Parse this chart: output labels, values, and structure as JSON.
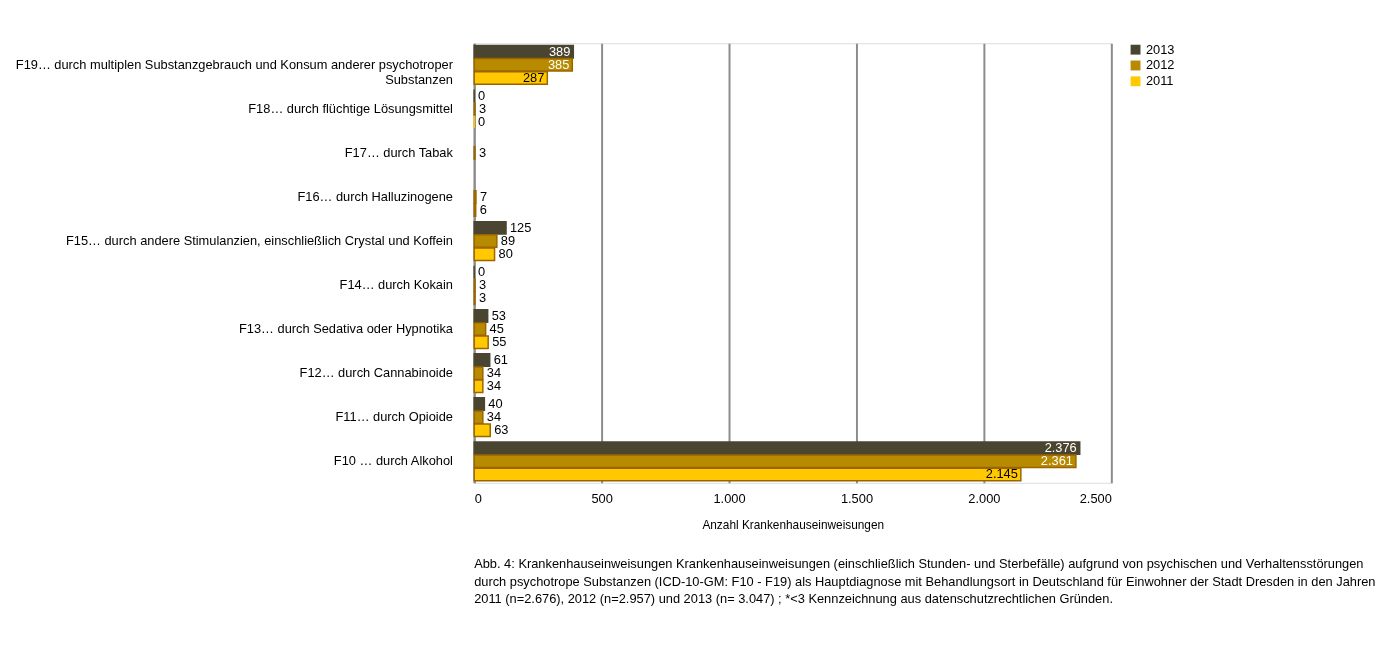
{
  "chart_data": {
    "type": "bar",
    "orientation": "horizontal",
    "categories": [
      "F19… durch multiplen Substanzgebrauch und Konsum anderer psychotroper Substanzen",
      "F18… durch flüchtige Lösungsmittel",
      "F17… durch Tabak",
      "F16… durch Halluzinogene",
      "F15… durch andere Stimulanzien, einschließlich Crystal und Koffein",
      "F14… durch Kokain",
      "F13… durch Sedativa oder Hypnotika",
      "F12… durch Cannabinoide",
      "F11… durch Opioide",
      "F10 … durch Alkohol"
    ],
    "series": [
      {
        "name": "2013",
        "color": "#4a4530",
        "values": [
          389,
          0,
          null,
          null,
          125,
          0,
          53,
          61,
          40,
          2376
        ],
        "value_labels": [
          "389",
          "0",
          null,
          null,
          "125",
          "0",
          "53",
          "61",
          "40",
          "2.376"
        ]
      },
      {
        "name": "2012",
        "color": "#b88a00",
        "values": [
          385,
          3,
          3,
          7,
          89,
          3,
          45,
          34,
          34,
          2361
        ],
        "value_labels": [
          "385",
          "3",
          "3",
          "7",
          "89",
          "3",
          "45",
          "34",
          "34",
          "2.361"
        ]
      },
      {
        "name": "2011",
        "color": "#ffc800",
        "values": [
          287,
          0,
          null,
          6,
          80,
          3,
          55,
          34,
          63,
          2145
        ],
        "value_labels": [
          "287",
          "0",
          null,
          "6",
          "80",
          "3",
          "55",
          "34",
          "63",
          "2.145"
        ]
      }
    ],
    "xlim": [
      0,
      2500
    ],
    "xticks": [
      0,
      500,
      {
        "value": 1000,
        "label": "1.000"
      },
      {
        "value": 1500,
        "label": "1.500"
      },
      {
        "value": 2000,
        "label": "2.000"
      },
      {
        "value": 2500,
        "label": "2.500"
      }
    ],
    "xlabel": "Anzahl Krankenhauseinweisungen",
    "grid": "x",
    "legend": "right",
    "annotations": [
      "Abb. 4: Krankenhauseinweisungen Krankenhauseinweisungen (einschließlich Stunden- und Sterbefälle) aufgrund von psychischen und Verhaltensstörungen durch psychotrope Substanzen (ICD-10-GM: F10 - F19) als Hauptdiagnose mit Behandlungsort in Deutschland für Einwohner der Stadt Dresden in den Jahren 2011 (n=2.676), 2012 (n=2.957) und 2013 (n= 3.047) ; *<3 Kennzeichnung aus datenschutzrechtlichen Gründen."
    ]
  }
}
